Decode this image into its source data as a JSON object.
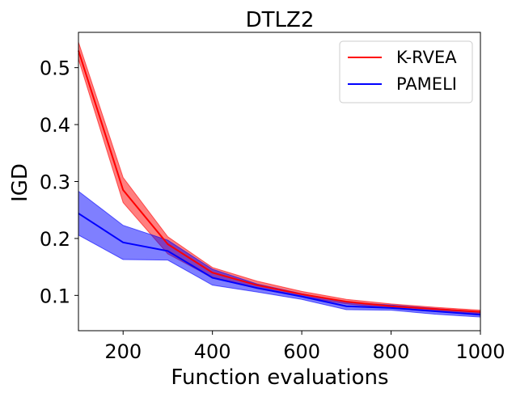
{
  "chart_data": {
    "type": "line",
    "title": "DTLZ2",
    "xlabel": "Function evaluations",
    "ylabel": "IGD",
    "xlim": [
      100,
      1000
    ],
    "ylim": [
      0.038,
      0.562
    ],
    "xticks": [
      200,
      400,
      600,
      800,
      1000
    ],
    "yticks": [
      0.1,
      0.2,
      0.3,
      0.4,
      0.5
    ],
    "legend_position": "top-right",
    "grid": false,
    "series": [
      {
        "name": "K-RVEA",
        "color": "#ff0000",
        "x": [
          100,
          200,
          300,
          400,
          500,
          600,
          700,
          800,
          900,
          1000
        ],
        "y": [
          0.53,
          0.285,
          0.19,
          0.14,
          0.118,
          0.102,
          0.089,
          0.081,
          0.076,
          0.071
        ],
        "lower": [
          0.515,
          0.263,
          0.173,
          0.131,
          0.112,
          0.098,
          0.085,
          0.078,
          0.073,
          0.068
        ],
        "upper": [
          0.545,
          0.307,
          0.203,
          0.149,
          0.125,
          0.107,
          0.093,
          0.085,
          0.079,
          0.074
        ]
      },
      {
        "name": "PAMELI",
        "color": "#0000ff",
        "x": [
          100,
          200,
          300,
          400,
          500,
          600,
          700,
          800,
          900,
          1000
        ],
        "y": [
          0.244,
          0.193,
          0.178,
          0.131,
          0.113,
          0.098,
          0.081,
          0.078,
          0.072,
          0.066
        ],
        "lower": [
          0.206,
          0.163,
          0.162,
          0.118,
          0.106,
          0.093,
          0.075,
          0.074,
          0.067,
          0.062
        ],
        "upper": [
          0.283,
          0.223,
          0.197,
          0.146,
          0.12,
          0.103,
          0.088,
          0.083,
          0.077,
          0.071
        ]
      }
    ]
  }
}
